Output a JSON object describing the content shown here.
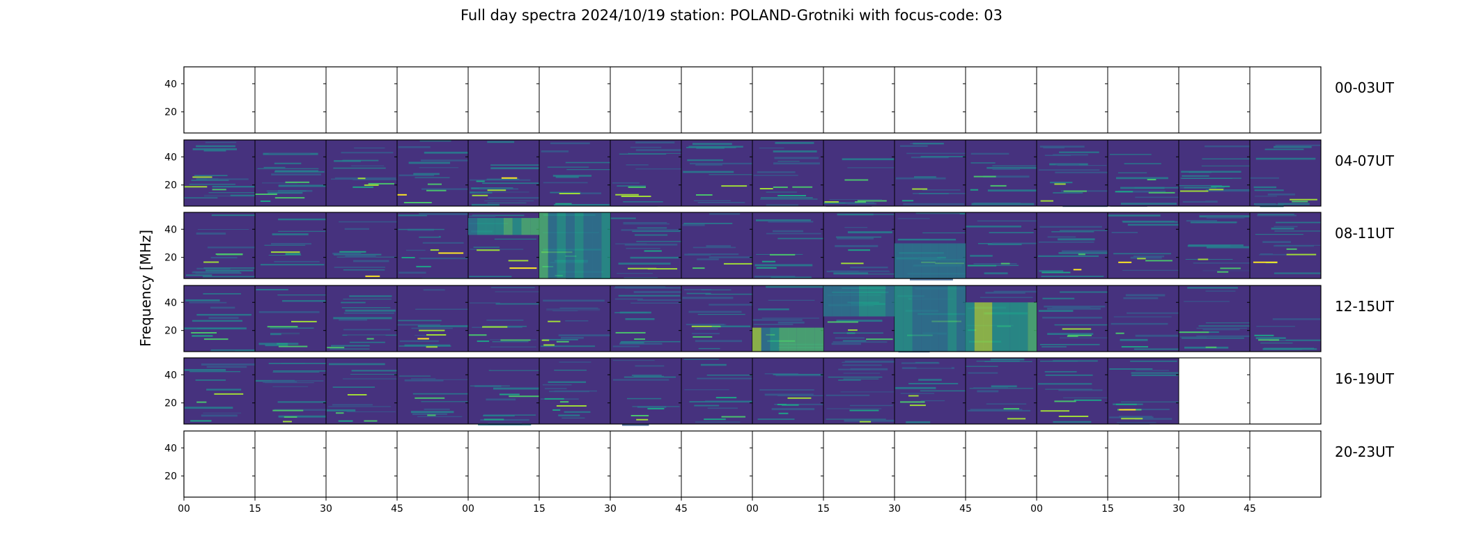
{
  "chart_data": {
    "type": "heatmap",
    "title": "Full day spectra 2024/10/19 station: POLAND-Grotniki with focus-code: 03",
    "ylabel": "Frequency [MHz]",
    "xlabel": "",
    "x_tick_labels": [
      "00",
      "15",
      "30",
      "45",
      "00",
      "15",
      "30",
      "45",
      "00",
      "15",
      "30",
      "45",
      "00",
      "15",
      "30",
      "45"
    ],
    "y_ticks": [
      20,
      40
    ],
    "y_range_mhz": [
      5,
      52
    ],
    "rows": [
      {
        "label": "00-03UT",
        "panels_with_data": 0
      },
      {
        "label": "04-07UT",
        "panels_with_data": 16
      },
      {
        "label": "08-11UT",
        "panels_with_data": 16
      },
      {
        "label": "12-15UT",
        "panels_with_data": 16
      },
      {
        "label": "16-19UT",
        "panels_with_data": 14
      },
      {
        "label": "20-23UT",
        "panels_with_data": 0
      }
    ],
    "colormap": [
      "#440154",
      "#46327e",
      "#365c8d",
      "#277f8e",
      "#1fa187",
      "#4ac16d",
      "#a0da39",
      "#fde725"
    ],
    "bursts": [
      {
        "row": 2,
        "panel": 4,
        "f_from": 36,
        "f_to": 48,
        "level": 0.75
      },
      {
        "row": 2,
        "panel": 5,
        "f_from": 5,
        "f_to": 52,
        "level": 0.7
      },
      {
        "row": 2,
        "panel": 10,
        "f_from": 5,
        "f_to": 30,
        "level": 0.55
      },
      {
        "row": 3,
        "panel": 8,
        "f_from": 5,
        "f_to": 22,
        "level": 0.8
      },
      {
        "row": 3,
        "panel": 9,
        "f_from": 30,
        "f_to": 52,
        "level": 0.6
      },
      {
        "row": 3,
        "panel": 10,
        "f_from": 5,
        "f_to": 52,
        "level": 0.65
      },
      {
        "row": 3,
        "panel": 11,
        "f_from": 5,
        "f_to": 40,
        "level": 0.95
      }
    ]
  }
}
